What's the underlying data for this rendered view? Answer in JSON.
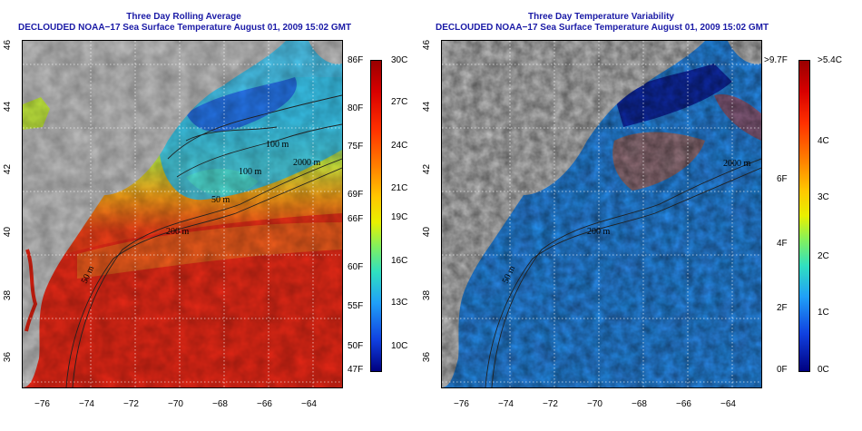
{
  "left_map": {
    "title_line1": "Three Day Rolling Average",
    "title_line2": "DECLOUDED NOAA−17 Sea Surface Temperature August 01, 2009 15:02 GMT",
    "x_ticks": [
      "−76",
      "−74",
      "−72",
      "−70",
      "−68",
      "−66",
      "−64"
    ],
    "y_ticks": [
      "46",
      "44",
      "42",
      "40",
      "38",
      "36"
    ],
    "contour_labels": [
      "100 m",
      "100 m",
      "2000 m",
      "50 m",
      "200 m",
      "50 m"
    ],
    "colorbar": {
      "f_labels": [
        "86F",
        "80F",
        "75F",
        "69F",
        "66F",
        "60F",
        "55F",
        "50F",
        "47F"
      ],
      "c_labels": [
        "30C",
        "27C",
        "24C",
        "21C",
        "19C",
        "16C",
        "13C",
        "10C"
      ]
    }
  },
  "right_map": {
    "title_line1": "Three Day Temperature Variability",
    "title_line2": "DECLOUDED NOAA−17 Sea Surface Temperature August 01, 2009 15:02 GMT",
    "x_ticks": [
      "−76",
      "−74",
      "−72",
      "−70",
      "−68",
      "−66",
      "−64"
    ],
    "y_ticks": [
      "46",
      "44",
      "42",
      "40",
      "38",
      "36"
    ],
    "contour_labels": [
      "2000 m",
      "200 m",
      "50 m"
    ],
    "colorbar": {
      "f_labels": [
        ">9.7F",
        "6F",
        "4F",
        "2F",
        "0F"
      ],
      "c_labels": [
        ">5.4C",
        "4C",
        "3C",
        "2C",
        "1C",
        "0C"
      ]
    }
  },
  "colors": {
    "land": "#c0c0c0",
    "title_blue": "#1a1aa6"
  }
}
